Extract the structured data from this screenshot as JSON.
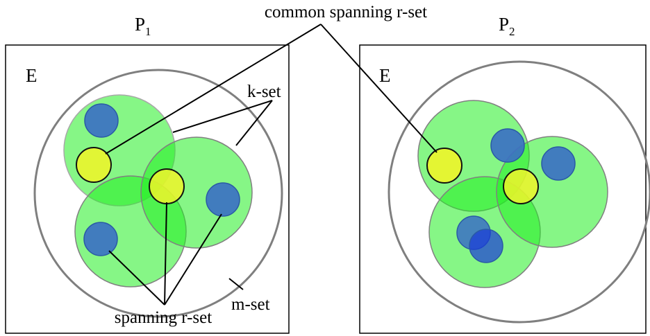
{
  "labels": {
    "common_spanning": "common spanning r-set",
    "k_set": "k-set",
    "m_set": "m-set",
    "spanning": "spanning r-set"
  },
  "panels": [
    {
      "name": "P",
      "subscript": "1",
      "set_label": "E"
    },
    {
      "name": "P",
      "subscript": "2",
      "set_label": "E"
    }
  ],
  "colors": {
    "k_set_fill": "#22ee22",
    "element_fill": "#3a6fc4",
    "element_overlap_fill": "#1a3ad8",
    "r_set_fill": "#eef52a",
    "outline": "#7f7f7f"
  }
}
